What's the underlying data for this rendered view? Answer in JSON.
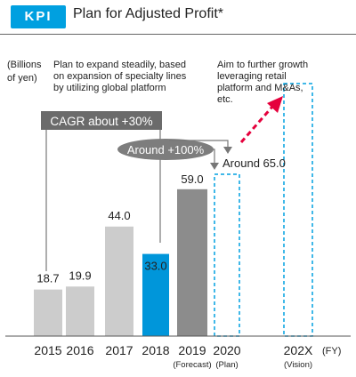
{
  "header": {
    "badge": "KPI",
    "title": "Plan for Adjusted Profit*"
  },
  "chart_data": {
    "type": "bar",
    "title": "Plan for Adjusted Profit*",
    "ylabel": "(Billions of yen)",
    "xlabel": "(FY)",
    "categories": [
      "2015",
      "2016",
      "2017",
      "2018",
      "2019",
      "2020",
      "202X"
    ],
    "sublabels": [
      "",
      "",
      "",
      "",
      "(Forecast)",
      "(Plan)",
      "(Vision)"
    ],
    "values": [
      18.7,
      19.9,
      44.0,
      33.0,
      59.0,
      65.0,
      null
    ],
    "value_labels": [
      "18.7",
      "19.9",
      "44.0",
      "33.0",
      "59.0",
      "Around 65.0",
      ""
    ],
    "bar_styles": [
      "gray",
      "gray",
      "gray",
      "blue",
      "dark",
      "dashed",
      "dashed"
    ],
    "colors": {
      "gray": "#cccccc",
      "blue": "#0096da",
      "dark": "#8c8c8c",
      "dashed": "#00a0e0",
      "arrow": "#e5003c"
    },
    "ylim": [
      0,
      120
    ],
    "annotations": {
      "left_note": [
        "Plan to expand steadily, based",
        "on expansion of specialty lines",
        "by utilizing global platform"
      ],
      "right_note": [
        "Aim to further growth",
        "leveraging retail",
        "platform and M&As,",
        "etc."
      ],
      "cagr": "CAGR about +30%",
      "around": "Around +100%"
    }
  }
}
